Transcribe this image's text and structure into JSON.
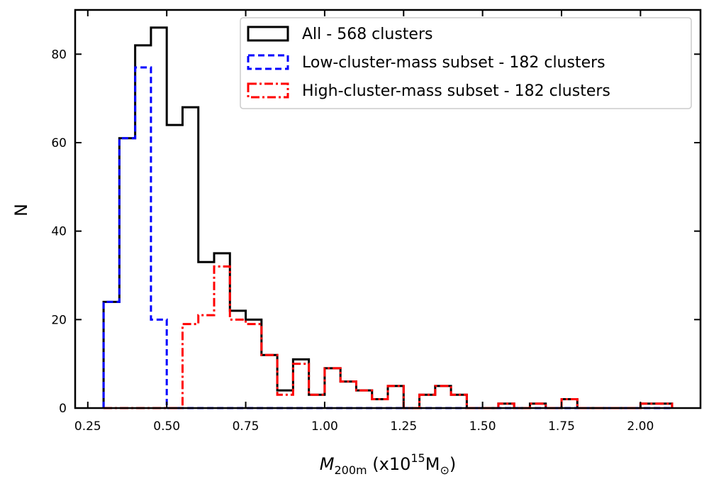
{
  "chart_data": {
    "type": "histogram",
    "xlabel": "M",
    "xlabel_subscript": "200m",
    "xlabel_unit_prefix": "(x10",
    "xlabel_unit_exponent": "15",
    "xlabel_unit_suffix": "M",
    "xlabel_unit_symbol": "⊙",
    "xlabel_close": ")",
    "ylabel": "N",
    "xlim": [
      0.21,
      2.19
    ],
    "ylim": [
      0,
      90
    ],
    "xticks": [
      0.25,
      0.5,
      0.75,
      1.0,
      1.25,
      1.5,
      1.75,
      2.0
    ],
    "xtick_labels": [
      "0.25",
      "0.50",
      "0.75",
      "1.00",
      "1.25",
      "1.50",
      "1.75",
      "2.00"
    ],
    "yticks": [
      0,
      20,
      40,
      60,
      80
    ],
    "ytick_labels": [
      "0",
      "20",
      "40",
      "60",
      "80"
    ],
    "bin_edges": [
      0.3,
      0.35,
      0.4,
      0.45,
      0.5,
      0.55,
      0.6,
      0.65,
      0.7,
      0.75,
      0.8,
      0.85,
      0.9,
      0.95,
      1.0,
      1.05,
      1.1,
      1.15,
      1.2,
      1.25,
      1.3,
      1.35,
      1.4,
      1.45,
      1.5,
      1.55,
      1.6,
      1.65,
      1.7,
      1.75,
      1.8,
      1.85,
      1.9,
      1.95,
      2.0,
      2.05,
      2.1
    ],
    "legend_position": "top-right",
    "series": [
      {
        "name": "All - 568 clusters",
        "color": "#000000",
        "linestyle": "solid",
        "counts": [
          24,
          61,
          82,
          86,
          64,
          68,
          33,
          35,
          22,
          20,
          12,
          4,
          11,
          3,
          9,
          6,
          4,
          2,
          5,
          0,
          3,
          5,
          3,
          0,
          0,
          1,
          0,
          1,
          0,
          2,
          0,
          0,
          0,
          0,
          1,
          1
        ]
      },
      {
        "name": "Low-cluster-mass subset - 182 clusters",
        "color": "#0000ff",
        "linestyle": "dashed",
        "counts": [
          24,
          61,
          77,
          20,
          0,
          0,
          0,
          0,
          0,
          0,
          0,
          0,
          0,
          0,
          0,
          0,
          0,
          0,
          0,
          0,
          0,
          0,
          0,
          0,
          0,
          0,
          0,
          0,
          0,
          0,
          0,
          0,
          0,
          0,
          0,
          0
        ]
      },
      {
        "name": "High-cluster-mass subset - 182 clusters",
        "color": "#ff0000",
        "linestyle": "dashdot",
        "counts": [
          0,
          0,
          0,
          0,
          0,
          19,
          21,
          32,
          20,
          19,
          12,
          3,
          10,
          3,
          9,
          6,
          4,
          2,
          5,
          0,
          3,
          5,
          3,
          0,
          0,
          1,
          0,
          1,
          0,
          2,
          0,
          0,
          0,
          0,
          1,
          1
        ]
      }
    ]
  }
}
